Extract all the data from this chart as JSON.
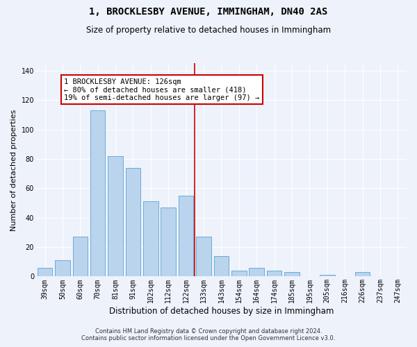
{
  "title": "1, BROCKLESBY AVENUE, IMMINGHAM, DN40 2AS",
  "subtitle": "Size of property relative to detached houses in Immingham",
  "xlabel": "Distribution of detached houses by size in Immingham",
  "ylabel": "Number of detached properties",
  "categories": [
    "39sqm",
    "50sqm",
    "60sqm",
    "70sqm",
    "81sqm",
    "91sqm",
    "102sqm",
    "112sqm",
    "122sqm",
    "133sqm",
    "143sqm",
    "154sqm",
    "164sqm",
    "174sqm",
    "185sqm",
    "195sqm",
    "205sqm",
    "216sqm",
    "226sqm",
    "237sqm",
    "247sqm"
  ],
  "values": [
    6,
    11,
    27,
    113,
    82,
    74,
    51,
    47,
    55,
    27,
    14,
    4,
    6,
    4,
    3,
    0,
    1,
    0,
    3,
    0,
    0
  ],
  "bar_color": "#bad4ed",
  "bar_edge_color": "#6aabd6",
  "background_color": "#eef2fb",
  "grid_color": "#ffffff",
  "vline_x_index": 8.5,
  "vline_color": "#cc0000",
  "annotation_text": "1 BROCKLESBY AVENUE: 126sqm\n← 80% of detached houses are smaller (418)\n19% of semi-detached houses are larger (97) →",
  "annotation_box_facecolor": "#ffffff",
  "annotation_box_edgecolor": "#cc0000",
  "footer_line1": "Contains HM Land Registry data © Crown copyright and database right 2024.",
  "footer_line2": "Contains public sector information licensed under the Open Government Licence v3.0.",
  "ylim": [
    0,
    145
  ],
  "figsize": [
    6.0,
    5.0
  ],
  "dpi": 100,
  "title_fontsize": 10,
  "subtitle_fontsize": 8.5,
  "ylabel_fontsize": 8,
  "xlabel_fontsize": 8.5,
  "tick_fontsize": 7,
  "annot_fontsize": 7.5,
  "footer_fontsize": 6
}
